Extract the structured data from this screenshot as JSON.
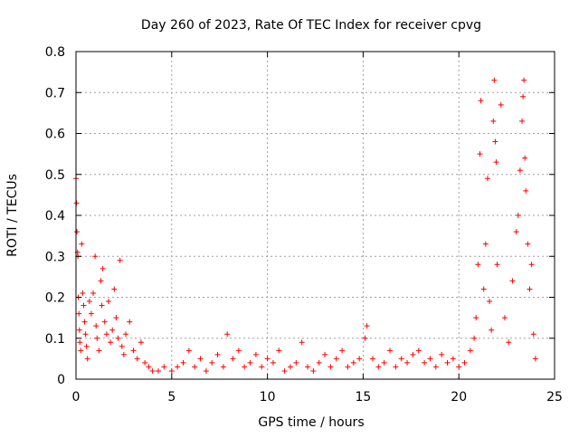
{
  "chart_data": {
    "type": "scatter",
    "title": "Day 260 of 2023, Rate Of TEC Index for receiver cpvg",
    "xlabel": "GPS time / hours",
    "ylabel": "ROTI / TECUs",
    "xlim": [
      0,
      25
    ],
    "ylim": [
      0,
      0.8
    ],
    "x_ticks": [
      "0",
      "5",
      "10",
      "15",
      "20",
      "25"
    ],
    "y_ticks": [
      "0",
      "0.1",
      "0.2",
      "0.3",
      "0.4",
      "0.5",
      "0.6",
      "0.7",
      "0.8"
    ],
    "grid": true,
    "marker": "+",
    "color": "#ff0000",
    "series": [
      {
        "points": [
          [
            0.0,
            0.49
          ],
          [
            0.03,
            0.43
          ],
          [
            0.05,
            0.36
          ],
          [
            0.08,
            0.31
          ],
          [
            0.1,
            0.3
          ],
          [
            0.12,
            0.2
          ],
          [
            0.15,
            0.16
          ],
          [
            0.18,
            0.12
          ],
          [
            0.2,
            0.09
          ],
          [
            0.25,
            0.07
          ],
          [
            0.3,
            0.33
          ],
          [
            0.35,
            0.21
          ],
          [
            0.4,
            0.18
          ],
          [
            0.45,
            0.14
          ],
          [
            0.5,
            0.11
          ],
          [
            0.55,
            0.08
          ],
          [
            0.6,
            0.05
          ],
          [
            0.7,
            0.19
          ],
          [
            0.8,
            0.16
          ],
          [
            0.9,
            0.21
          ],
          [
            1.0,
            0.3
          ],
          [
            1.05,
            0.13
          ],
          [
            1.1,
            0.1
          ],
          [
            1.2,
            0.07
          ],
          [
            1.3,
            0.24
          ],
          [
            1.35,
            0.18
          ],
          [
            1.4,
            0.27
          ],
          [
            1.5,
            0.14
          ],
          [
            1.6,
            0.11
          ],
          [
            1.7,
            0.19
          ],
          [
            1.8,
            0.09
          ],
          [
            1.9,
            0.12
          ],
          [
            2.0,
            0.22
          ],
          [
            2.1,
            0.15
          ],
          [
            2.2,
            0.1
          ],
          [
            2.3,
            0.29
          ],
          [
            2.4,
            0.08
          ],
          [
            2.5,
            0.06
          ],
          [
            2.6,
            0.11
          ],
          [
            2.8,
            0.14
          ],
          [
            3.0,
            0.07
          ],
          [
            3.2,
            0.05
          ],
          [
            3.4,
            0.09
          ],
          [
            3.6,
            0.04
          ],
          [
            3.8,
            0.03
          ],
          [
            4.0,
            0.02
          ],
          [
            4.3,
            0.02
          ],
          [
            4.6,
            0.03
          ],
          [
            5.0,
            0.02
          ],
          [
            5.3,
            0.03
          ],
          [
            5.6,
            0.04
          ],
          [
            5.9,
            0.07
          ],
          [
            6.2,
            0.03
          ],
          [
            6.5,
            0.05
          ],
          [
            6.8,
            0.02
          ],
          [
            7.1,
            0.04
          ],
          [
            7.4,
            0.06
          ],
          [
            7.7,
            0.03
          ],
          [
            7.9,
            0.11
          ],
          [
            8.2,
            0.05
          ],
          [
            8.5,
            0.07
          ],
          [
            8.8,
            0.03
          ],
          [
            9.1,
            0.04
          ],
          [
            9.4,
            0.06
          ],
          [
            9.7,
            0.03
          ],
          [
            10.0,
            0.05
          ],
          [
            10.3,
            0.04
          ],
          [
            10.6,
            0.07
          ],
          [
            10.9,
            0.02
          ],
          [
            11.2,
            0.03
          ],
          [
            11.5,
            0.04
          ],
          [
            11.8,
            0.09
          ],
          [
            12.1,
            0.03
          ],
          [
            12.4,
            0.02
          ],
          [
            12.7,
            0.04
          ],
          [
            13.0,
            0.06
          ],
          [
            13.3,
            0.03
          ],
          [
            13.6,
            0.05
          ],
          [
            13.9,
            0.07
          ],
          [
            14.2,
            0.03
          ],
          [
            14.5,
            0.04
          ],
          [
            14.8,
            0.05
          ],
          [
            15.1,
            0.1
          ],
          [
            15.2,
            0.13
          ],
          [
            15.5,
            0.05
          ],
          [
            15.8,
            0.03
          ],
          [
            16.1,
            0.04
          ],
          [
            16.4,
            0.07
          ],
          [
            16.7,
            0.03
          ],
          [
            17.0,
            0.05
          ],
          [
            17.3,
            0.04
          ],
          [
            17.6,
            0.06
          ],
          [
            17.9,
            0.07
          ],
          [
            18.2,
            0.04
          ],
          [
            18.5,
            0.05
          ],
          [
            18.8,
            0.03
          ],
          [
            19.1,
            0.06
          ],
          [
            19.4,
            0.04
          ],
          [
            19.7,
            0.05
          ],
          [
            20.0,
            0.03
          ],
          [
            20.3,
            0.04
          ],
          [
            20.6,
            0.07
          ],
          [
            20.8,
            0.1
          ],
          [
            20.9,
            0.15
          ],
          [
            21.0,
            0.28
          ],
          [
            21.1,
            0.55
          ],
          [
            21.15,
            0.68
          ],
          [
            21.3,
            0.22
          ],
          [
            21.4,
            0.33
          ],
          [
            21.5,
            0.49
          ],
          [
            21.6,
            0.19
          ],
          [
            21.7,
            0.12
          ],
          [
            21.8,
            0.63
          ],
          [
            21.85,
            0.73
          ],
          [
            21.9,
            0.58
          ],
          [
            21.95,
            0.53
          ],
          [
            22.0,
            0.28
          ],
          [
            22.2,
            0.67
          ],
          [
            22.4,
            0.15
          ],
          [
            22.6,
            0.09
          ],
          [
            22.8,
            0.24
          ],
          [
            23.0,
            0.36
          ],
          [
            23.1,
            0.4
          ],
          [
            23.2,
            0.51
          ],
          [
            23.3,
            0.63
          ],
          [
            23.35,
            0.69
          ],
          [
            23.4,
            0.73
          ],
          [
            23.45,
            0.54
          ],
          [
            23.5,
            0.46
          ],
          [
            23.6,
            0.33
          ],
          [
            23.7,
            0.22
          ],
          [
            23.8,
            0.28
          ],
          [
            23.9,
            0.11
          ],
          [
            24.0,
            0.05
          ]
        ]
      }
    ]
  }
}
